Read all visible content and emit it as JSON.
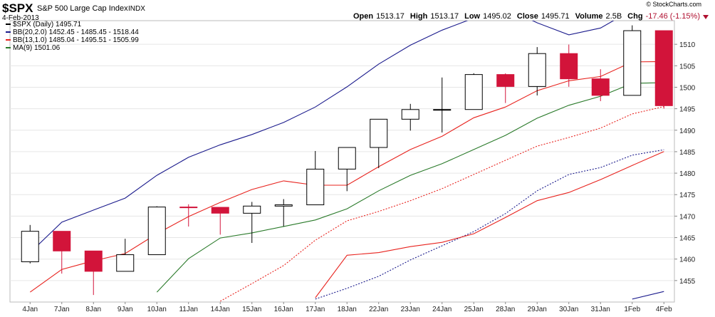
{
  "chart_data": {
    "type": "candlestick",
    "title": "$SPX",
    "subtitle": "S&P 500 Large Cap Index",
    "exchange": "INDX",
    "date": "4-Feb-2013",
    "watermark": "© StockCharts.com",
    "quote": [
      {
        "label": "Open",
        "value": 1513.17
      },
      {
        "label": "High",
        "value": 1513.17
      },
      {
        "label": "Low",
        "value": 1495.02
      },
      {
        "label": "Close",
        "value": 1495.71
      },
      {
        "label": "Volume",
        "value": "2.5B"
      },
      {
        "label": "Chg",
        "value": "-17.46 (-1.15%)"
      }
    ],
    "price_legend": "$SPX (Daily) 1495.71",
    "categories": [
      "4Jan",
      "7Jan",
      "8Jan",
      "9Jan",
      "10Jan",
      "11Jan",
      "14Jan",
      "15Jan",
      "16Jan",
      "17Jan",
      "18Jan",
      "22Jan",
      "23Jan",
      "24Jan",
      "25Jan",
      "28Jan",
      "29Jan",
      "30Jan",
      "31Jan",
      "1Feb",
      "4Feb"
    ],
    "open": [
      1459.37,
      1466.47,
      1461.89,
      1457.15,
      1461.02,
      1472.12,
      1472.05,
      1470.67,
      1472.33,
      1472.63,
      1480.95,
      1485.98,
      1492.56,
      1494.81,
      1494.82,
      1502.96,
      1500.18,
      1507.84,
      1501.96,
      1498.11,
      1513.17
    ],
    "high": [
      1467.94,
      1466.47,
      1461.89,
      1464.73,
      1472.3,
      1472.75,
      1472.05,
      1473.31,
      1473.96,
      1485.16,
      1485.98,
      1492.56,
      1496.13,
      1502.27,
      1503.26,
      1503.23,
      1509.35,
      1509.94,
      1504.19,
      1514.41,
      1513.17
    ],
    "low": [
      1458.99,
      1456.62,
      1451.64,
      1457.15,
      1461.02,
      1467.58,
      1465.69,
      1463.76,
      1467.6,
      1472.63,
      1475.81,
      1481.16,
      1489.9,
      1489.46,
      1494.82,
      1496.33,
      1498.09,
      1500.11,
      1496.76,
      1498.11,
      1495.02
    ],
    "close": [
      1466.47,
      1461.89,
      1457.15,
      1461.02,
      1472.12,
      1472.05,
      1470.68,
      1472.34,
      1472.63,
      1480.94,
      1485.98,
      1492.56,
      1494.81,
      1494.82,
      1502.96,
      1500.18,
      1507.84,
      1501.96,
      1498.11,
      1513.17,
      1495.71
    ],
    "up_color": "#ffffff",
    "down_color": "#d2143a",
    "overlays": [
      {
        "name": "BB(20,2.0) 1452.45 - 1485.45 - 1518.44",
        "color": "#1a1a8c",
        "lines": [
          {
            "style": "solid",
            "values": [
              null,
              null,
              null,
              null,
              null,
              null,
              null,
              null,
              null,
              null,
              null,
              null,
              null,
              null,
              null,
              null,
              null,
              null,
              null,
              1450.7,
              1452.45
            ]
          },
          {
            "style": "dotted",
            "values": [
              null,
              null,
              null,
              null,
              null,
              null,
              null,
              null,
              null,
              1450.7,
              1453.2,
              1456.0,
              1459.8,
              1463.1,
              1466.4,
              1470.6,
              1475.9,
              1479.7,
              1481.3,
              1484.2,
              1485.45
            ]
          },
          {
            "style": "solid",
            "values": [
              1461.5,
              1468.6,
              1471.4,
              1474.2,
              1479.5,
              1483.7,
              1486.6,
              1489.0,
              1491.8,
              1495.4,
              1500.1,
              1505.4,
              1509.8,
              1513.3,
              1516.1,
              1518.5,
              1515.0,
              1512.2,
              1513.8,
              1518.0,
              1518.44
            ]
          }
        ]
      },
      {
        "name": "BB(13,1.0) 1485.04 - 1495.51 - 1505.99",
        "color": "#e8231e",
        "lines": [
          {
            "style": "solid",
            "values": [
              null,
              null,
              null,
              null,
              null,
              null,
              null,
              null,
              null,
              1451.0,
              1460.9,
              1461.5,
              1462.9,
              1463.9,
              1465.9,
              1469.7,
              1473.6,
              1475.5,
              1478.5,
              1481.8,
              1485.04
            ]
          },
          {
            "style": "dotted",
            "values": [
              null,
              null,
              null,
              null,
              null,
              null,
              1450.2,
              1454.3,
              1458.5,
              1464.4,
              1468.9,
              1471.1,
              1473.6,
              1476.4,
              1479.7,
              1483.0,
              1486.3,
              1488.3,
              1490.5,
              1493.8,
              1495.51
            ]
          },
          {
            "style": "solid",
            "values": [
              1452.3,
              1457.6,
              1459.6,
              1461.3,
              1465.9,
              1469.9,
              1473.2,
              1476.2,
              1478.2,
              1477.2,
              1477.2,
              1481.5,
              1485.5,
              1488.6,
              1492.9,
              1495.4,
              1499.2,
              1501.5,
              1502.5,
              1505.9,
              1505.99
            ]
          }
        ]
      },
      {
        "name": "MA(9) 1501.06",
        "color": "#2a7a2a",
        "lines": [
          {
            "style": "solid",
            "values": [
              null,
              null,
              null,
              null,
              1452.3,
              1460.1,
              1464.9,
              1466.1,
              1467.6,
              1469.1,
              1471.7,
              1475.9,
              1479.5,
              1482.2,
              1485.5,
              1488.8,
              1492.8,
              1495.8,
              1497.9,
              1500.9,
              1501.06
            ]
          }
        ]
      }
    ],
    "ylim": [
      1450,
      1515.5
    ],
    "yticks": [
      1455,
      1460,
      1465,
      1470,
      1475,
      1480,
      1485,
      1490,
      1495,
      1500,
      1505,
      1510
    ],
    "grid": true
  }
}
